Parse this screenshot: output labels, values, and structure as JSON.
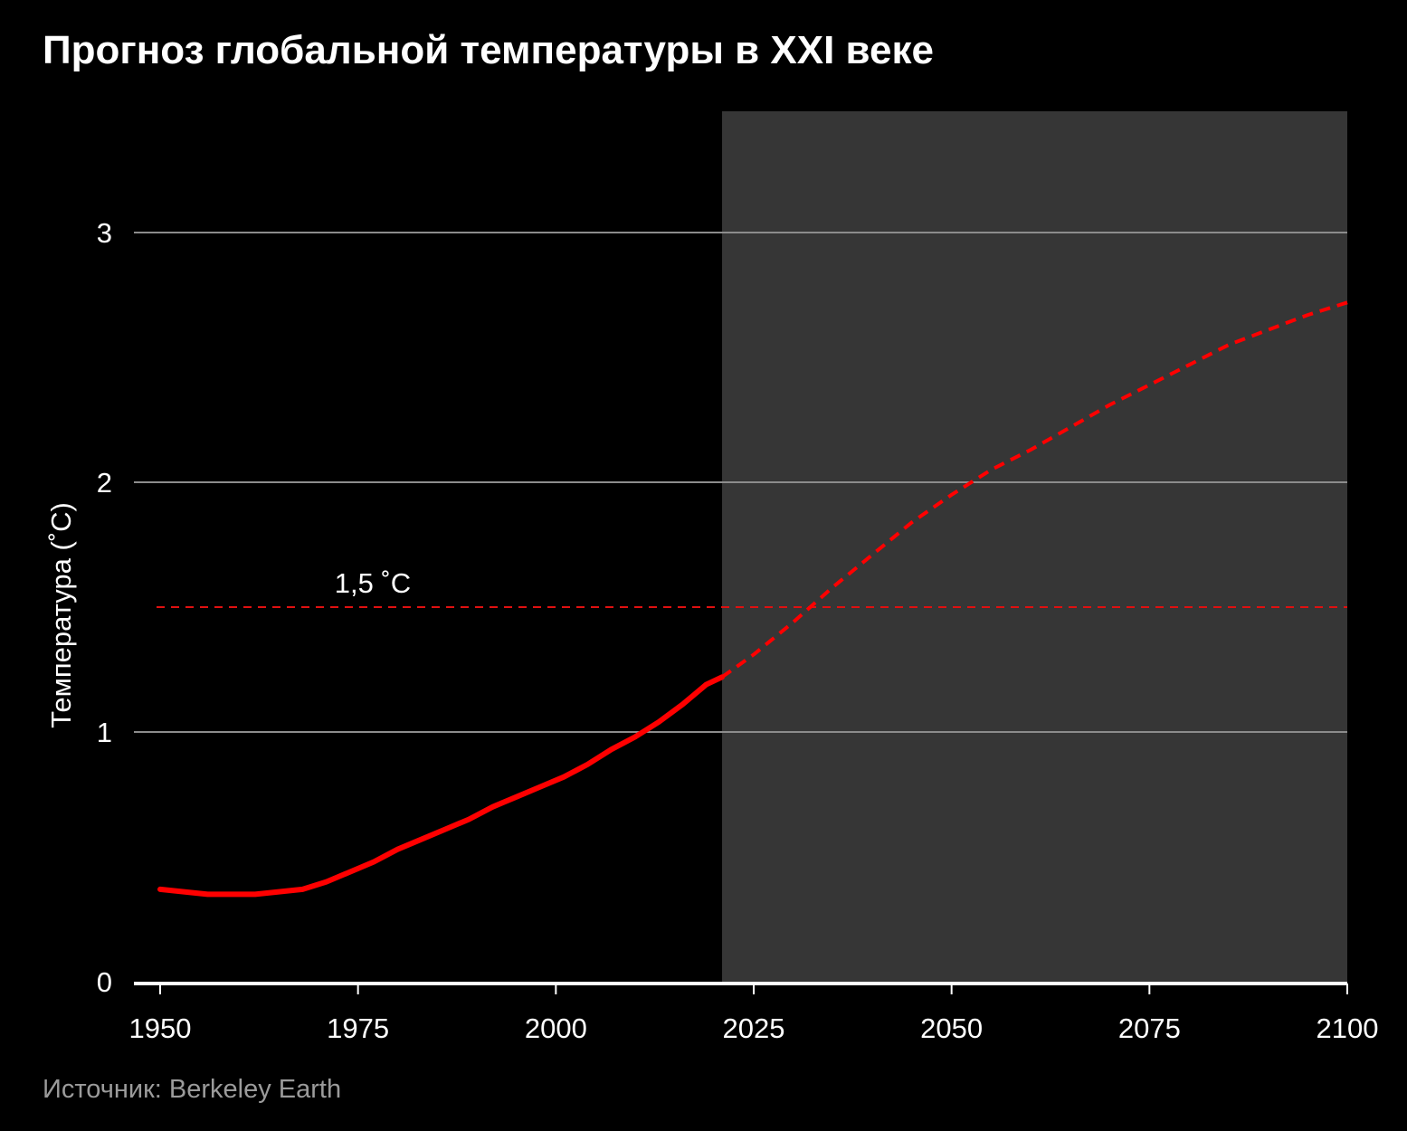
{
  "title": "Прогноз глобальной температуры в XXI веке",
  "source": "Источник: Berkeley Earth",
  "colors": {
    "background": "#000000",
    "forecast_shade": "#363636",
    "gridline": "#8c8c8c",
    "series": "#ff0000",
    "threshold": "#e01010",
    "axis": "#ffffff"
  },
  "chart_data": {
    "type": "line",
    "title": "Прогноз глобальной температуры в XXI веке",
    "xlabel": "",
    "ylabel": "Температура (˚C)",
    "xlim": [
      1950,
      2100
    ],
    "ylim": [
      0,
      3
    ],
    "xticks": [
      "1950",
      "1975",
      "2000",
      "2025",
      "2050",
      "2075",
      "2100"
    ],
    "yticks": [
      "0",
      "1",
      "2",
      "3"
    ],
    "grid": true,
    "forecast_region": [
      2021,
      2100
    ],
    "reference_line": {
      "y": 1.5,
      "label": "1,5 ˚C",
      "style": "dashed"
    },
    "series": [
      {
        "style": "solid",
        "points": [
          [
            1950,
            0.37
          ],
          [
            1953,
            0.36
          ],
          [
            1956,
            0.35
          ],
          [
            1959,
            0.35
          ],
          [
            1962,
            0.35
          ],
          [
            1965,
            0.36
          ],
          [
            1968,
            0.37
          ],
          [
            1971,
            0.4
          ],
          [
            1974,
            0.44
          ],
          [
            1977,
            0.48
          ],
          [
            1980,
            0.53
          ],
          [
            1983,
            0.57
          ],
          [
            1986,
            0.61
          ],
          [
            1989,
            0.65
          ],
          [
            1992,
            0.7
          ],
          [
            1995,
            0.74
          ],
          [
            1998,
            0.78
          ],
          [
            2001,
            0.82
          ],
          [
            2004,
            0.87
          ],
          [
            2007,
            0.93
          ],
          [
            2010,
            0.98
          ],
          [
            2013,
            1.04
          ],
          [
            2016,
            1.11
          ],
          [
            2019,
            1.19
          ],
          [
            2021,
            1.22
          ]
        ]
      },
      {
        "style": "dashed",
        "points": [
          [
            2021,
            1.22
          ],
          [
            2025,
            1.31
          ],
          [
            2030,
            1.44
          ],
          [
            2035,
            1.58
          ],
          [
            2040,
            1.71
          ],
          [
            2045,
            1.84
          ],
          [
            2050,
            1.95
          ],
          [
            2055,
            2.05
          ],
          [
            2060,
            2.13
          ],
          [
            2065,
            2.22
          ],
          [
            2070,
            2.31
          ],
          [
            2075,
            2.39
          ],
          [
            2080,
            2.47
          ],
          [
            2085,
            2.55
          ],
          [
            2090,
            2.61
          ],
          [
            2095,
            2.67
          ],
          [
            2100,
            2.72
          ]
        ]
      }
    ]
  }
}
